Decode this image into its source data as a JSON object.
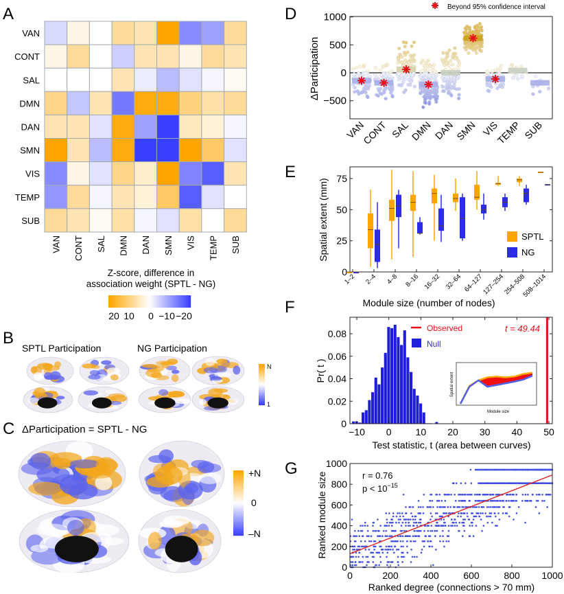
{
  "panels": {
    "a": "A",
    "b": "B",
    "c": "C",
    "d": "D",
    "e": "E",
    "f": "F",
    "g": "G"
  },
  "colors": {
    "orange": "#FFA500",
    "blue": "#3A40FF",
    "red": "#E8101A",
    "gold": "#D8B040"
  },
  "chart_data": [
    {
      "id": "A",
      "type": "heatmap",
      "rows": [
        "VAN",
        "CONT",
        "SAL",
        "DMN",
        "DAN",
        "SMN",
        "VIS",
        "TEMP",
        "SUB"
      ],
      "cols": [
        "VAN",
        "CONT",
        "SAL",
        "DMN",
        "DAN",
        "SMN",
        "VIS",
        "TEMP",
        "SUB"
      ],
      "values": [
        [
          -4,
          2,
          0,
          8,
          6,
          20,
          -12,
          -10,
          8
        ],
        [
          2,
          8,
          0,
          -5,
          6,
          6,
          2,
          8,
          6
        ],
        [
          0,
          0,
          0,
          6,
          -2,
          -7,
          -3,
          -1,
          1
        ],
        [
          9,
          -6,
          6,
          -14,
          19,
          19,
          10,
          7,
          8
        ],
        [
          6,
          6,
          -3,
          19,
          -10,
          -20,
          5,
          3,
          -1
        ],
        [
          20,
          6,
          -7,
          19,
          -20,
          -20,
          20,
          12,
          -3
        ],
        [
          -12,
          2,
          -3,
          9,
          4,
          20,
          -13,
          -17,
          6
        ],
        [
          -11,
          8,
          -1,
          6,
          3,
          12,
          -17,
          -3,
          0
        ],
        [
          8,
          6,
          1,
          7,
          -1,
          -3,
          7,
          0,
          8
        ]
      ],
      "colorbar": {
        "title_line1": "Z-score, difference in",
        "title_line2": "association weight (SPTL - NG)",
        "ticks": [
          "20",
          "10",
          "0",
          "−10",
          "−20"
        ],
        "range": [
          20,
          -20
        ]
      }
    },
    {
      "id": "B",
      "type": "other",
      "titles": [
        "SPTL Participation",
        "NG Participation"
      ],
      "colorbar_ticks": [
        "N",
        "1"
      ]
    },
    {
      "id": "C",
      "type": "other",
      "title": "ΔParticipation = SPTL - NG",
      "colorbar_ticks": [
        "+N",
        "0",
        "–N"
      ]
    },
    {
      "id": "D",
      "type": "scatter",
      "categories": [
        "VAN",
        "CONT",
        "SAL",
        "DMN",
        "DAN",
        "SMN",
        "VIS",
        "TEMP",
        "SUB"
      ],
      "means": [
        -140,
        -180,
        60,
        -210,
        0,
        620,
        -110,
        40,
        -180
      ],
      "significant": [
        true,
        true,
        true,
        true,
        false,
        true,
        true,
        false,
        false
      ],
      "point_spread": [
        200,
        200,
        280,
        250,
        280,
        190,
        150,
        120,
        150
      ],
      "point_range": [
        [
          -700,
          200
        ],
        [
          -550,
          640
        ],
        [
          -580,
          740
        ],
        [
          -760,
          620
        ],
        [
          -700,
          700
        ],
        [
          0,
          970
        ],
        [
          -420,
          360
        ],
        [
          -150,
          560
        ],
        [
          -540,
          -60
        ]
      ],
      "n_points": [
        70,
        80,
        110,
        160,
        100,
        150,
        70,
        25,
        12
      ],
      "ylabel": "ΔParticipation",
      "yticks": [
        "1000",
        "500",
        "0",
        "−500"
      ],
      "ylim": [
        -830,
        1000
      ],
      "legend": "Beyond 95% confidence interval"
    },
    {
      "id": "E",
      "type": "box",
      "categories": [
        "1–2",
        "2–4",
        "4–8",
        "8–16",
        "16–32",
        "32–64",
        "64–127",
        "127–254",
        "254–508",
        "508–1014"
      ],
      "series": [
        {
          "name": "SPTL",
          "color": "#FFA500",
          "median": [
            0,
            34,
            51,
            56,
            63,
            59,
            60,
            71,
            74,
            80
          ],
          "q1": [
            0,
            19,
            41,
            49,
            55,
            56,
            58,
            70,
            72,
            79.5
          ],
          "q3": [
            0,
            47,
            58,
            62,
            67,
            63,
            70,
            71.5,
            75,
            80.5
          ],
          "min": [
            0,
            4,
            10,
            12,
            25,
            49,
            50,
            69,
            69,
            79.5
          ],
          "max": [
            0,
            66,
            82,
            81,
            78,
            75,
            81,
            77,
            77,
            80.5
          ]
        },
        {
          "name": "NG",
          "color": "#2B2BE8",
          "median": [
            0,
            22,
            53,
            31,
            37,
            43,
            50,
            56,
            63,
            70
          ],
          "q1": [
            0,
            8,
            44,
            31,
            33,
            27,
            47,
            52,
            56,
            69.5
          ],
          "q3": [
            0,
            34,
            62,
            40,
            51,
            60,
            54,
            60,
            67,
            70.5
          ],
          "min": [
            0,
            3,
            19,
            30,
            24,
            25,
            42,
            49,
            54,
            69.5
          ],
          "max": [
            0,
            56,
            66,
            44,
            62,
            63,
            63,
            63,
            70,
            70.5
          ]
        }
      ],
      "xlabel": "Module size (number of nodes)",
      "ylabel": "Spatial extent (mm)",
      "yticks": [
        "0",
        "25",
        "50",
        "75"
      ],
      "ylim": [
        0,
        84
      ]
    },
    {
      "id": "F",
      "type": "bar",
      "x": [
        -11,
        -10,
        -9,
        -8,
        -7,
        -6,
        -5,
        -4,
        -3,
        -2,
        -1,
        0,
        1,
        2,
        3,
        4,
        5,
        6,
        7,
        8,
        9,
        10,
        11,
        12,
        13,
        14,
        15
      ],
      "values": [
        0.002,
        0.002,
        0.001,
        0.01,
        0.012,
        0.021,
        0.028,
        0.041,
        0.035,
        0.05,
        0.063,
        0.086,
        0.085,
        0.088,
        0.077,
        0.07,
        0.083,
        0.059,
        0.046,
        0.031,
        0.025,
        0.018,
        0.01,
        0.0004,
        0.0004,
        0,
        0.0015
      ],
      "observed_t": 49.44,
      "observed_label": "t = 49.44",
      "legend": [
        "Observed",
        "Null"
      ],
      "xlabel": "Test statistic, t (area between curves)",
      "ylabel": "Pr( t )",
      "xticks": [
        "−10",
        "0",
        "10",
        "20",
        "30",
        "40",
        "50"
      ],
      "yticks": [
        "0",
        "0.02",
        "0.04",
        "0.06",
        "0.08"
      ],
      "xlim": [
        -12,
        51
      ],
      "ylim": [
        0,
        0.095
      ],
      "inset": {
        "xlabel": "Module size",
        "ylabel": "Spatial extent",
        "sptl": [
          0,
          42,
          55,
          62,
          64,
          62,
          64,
          70,
          73
        ],
        "ng": [
          0,
          40,
          55,
          40,
          44,
          48,
          52,
          57,
          66
        ]
      }
    },
    {
      "id": "G",
      "type": "scatter",
      "xlabel": "Ranked degree (connections > 70 mm)",
      "ylabel": "Ranked module size",
      "xticks": [
        "0",
        "200",
        "400",
        "600",
        "800",
        "1000"
      ],
      "yticks": [
        "0",
        "200",
        "400",
        "600",
        "800",
        "1000"
      ],
      "xlim": [
        0,
        1000
      ],
      "ylim": [
        0,
        1000
      ],
      "fit": {
        "intercept": 130,
        "slope": 0.76
      },
      "r_text": "r = 0.76",
      "p_text": "p < 10",
      "p_exp": "−15",
      "levels": [
        0,
        20,
        50,
        100,
        140,
        170,
        200,
        250,
        300,
        350,
        400,
        430,
        460,
        490,
        520,
        580,
        640,
        700,
        810,
        940
      ]
    }
  ]
}
